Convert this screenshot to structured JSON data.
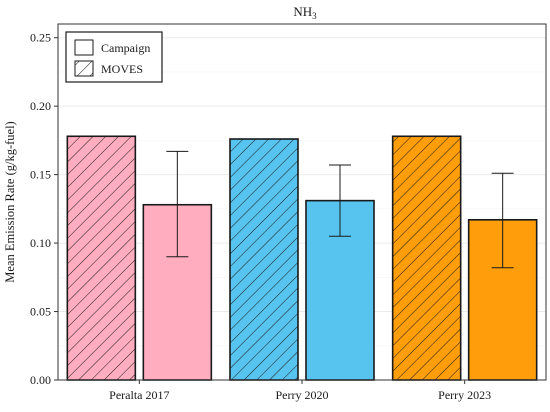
{
  "chart_data": {
    "type": "bar",
    "title": "NH₃",
    "ylabel": "Mean Emission Rate (g/kg-fuel)",
    "xlabel": "",
    "ylim": [
      0,
      0.26
    ],
    "yticks": [
      "0.00",
      "0.05",
      "0.10",
      "0.15",
      "0.20",
      "0.25"
    ],
    "grid": true,
    "legend_position": "top-left",
    "categories": [
      "Peralta 2017",
      "Perry 2020",
      "Perry 2023"
    ],
    "category_colors": [
      "#ffadbf",
      "#56c4ef",
      "#ff9d0a"
    ],
    "series": [
      {
        "name": "MOVES",
        "pattern": "hatched",
        "values": [
          0.178,
          0.176,
          0.178
        ],
        "error": [
          null,
          null,
          null
        ]
      },
      {
        "name": "Campaign",
        "pattern": "solid",
        "values": [
          0.128,
          0.131,
          0.117
        ],
        "error": [
          [
            0.09,
            0.167
          ],
          [
            0.105,
            0.157
          ],
          [
            0.082,
            0.151
          ]
        ]
      }
    ],
    "legend": [
      {
        "label": "Campaign",
        "pattern": "solid"
      },
      {
        "label": "MOVES",
        "pattern": "hatched"
      }
    ]
  }
}
